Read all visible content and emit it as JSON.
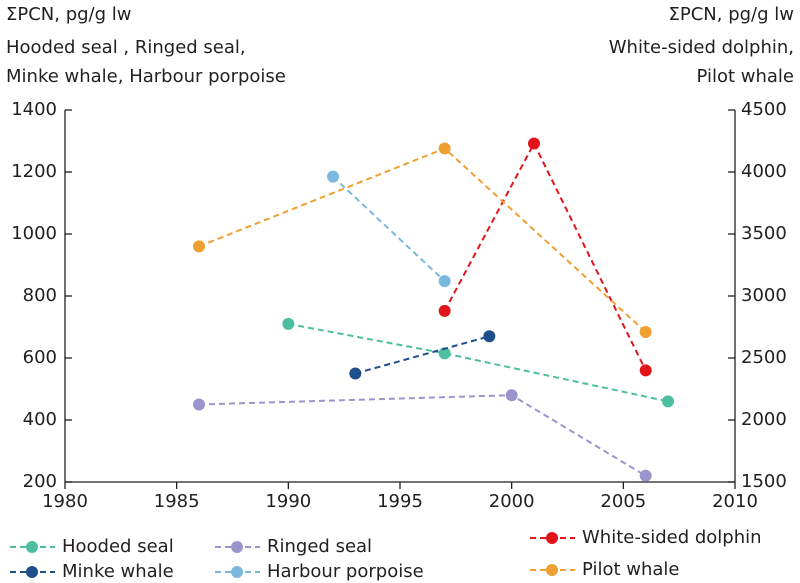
{
  "chart_data": {
    "type": "line",
    "ylabel": "ΣPCN, pg/g lw",
    "ylabel_species": [
      "Hooded seal , Ringed seal,",
      "Minke whale, Harbour porpoise"
    ],
    "y2label": "ΣPCN, pg/g lw",
    "y2label_species": [
      "White-sided dolphin,",
      "Pilot whale"
    ],
    "xlim": [
      1980,
      2010
    ],
    "xticks": [
      1980,
      1985,
      1990,
      1995,
      2000,
      2005,
      2010
    ],
    "ylim": [
      200,
      1400
    ],
    "yticks": [
      200,
      400,
      600,
      800,
      1000,
      1200,
      1400
    ],
    "y2lim": [
      1500,
      4500
    ],
    "y2ticks": [
      1500,
      2000,
      2500,
      3000,
      3500,
      4000,
      4500
    ],
    "series": [
      {
        "name": "Hooded seal",
        "color": "#4dbfa0",
        "x": [
          1990,
          1997,
          2007
        ],
        "values": [
          710,
          615,
          460
        ]
      },
      {
        "name": "Ringed seal",
        "color": "#9a95cc",
        "x": [
          1986,
          2000,
          2006
        ],
        "values": [
          450,
          480,
          220
        ]
      },
      {
        "name": "Minke whale",
        "color": "#1f4e8c",
        "x": [
          1993,
          1999
        ],
        "values": [
          550,
          670
        ]
      },
      {
        "name": "Harbour porpoise",
        "color": "#7ab8e0",
        "x": [
          1992,
          1997
        ],
        "values": [
          1185,
          848
        ]
      },
      {
        "name": "White-sided dolphin",
        "color": "#e2141b",
        "axis": "y2",
        "x": [
          1997,
          2001,
          2006
        ],
        "values": [
          2880,
          4230,
          2400
        ]
      },
      {
        "name": "Pilot whale",
        "color": "#f0a030",
        "axis": "y2",
        "x": [
          1986,
          1997,
          2006
        ],
        "values": [
          3400,
          4190,
          2710
        ]
      }
    ]
  }
}
